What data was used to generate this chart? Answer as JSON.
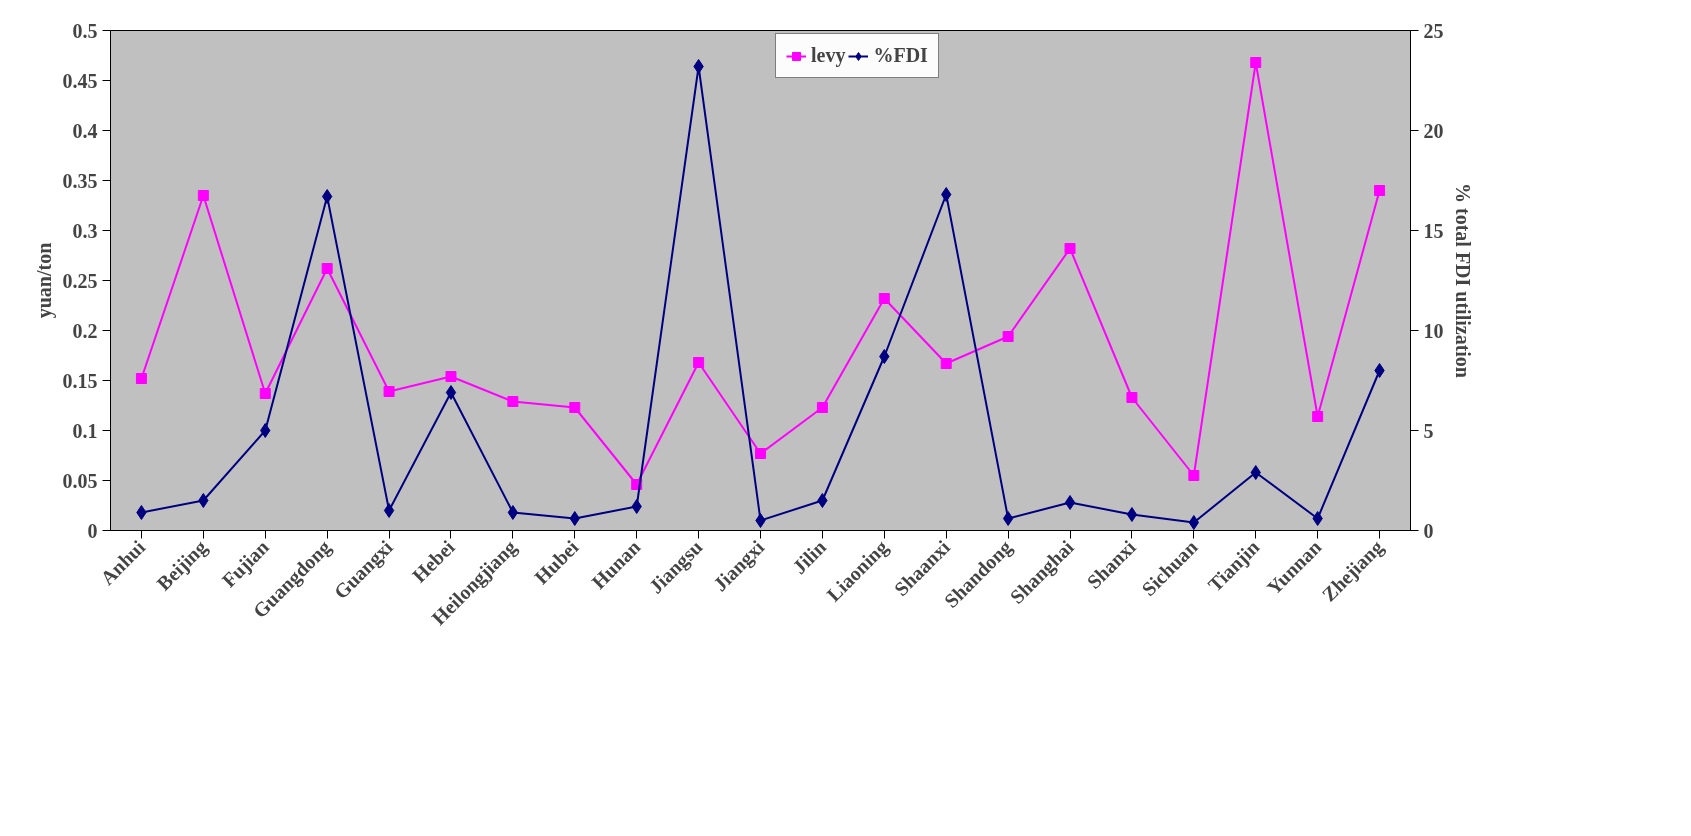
{
  "chart_data": {
    "type": "line",
    "categories": [
      "Anhui",
      "Beijing",
      "Fujian",
      "Guangdong",
      "Guangxi",
      "Hebei",
      "Heilongjiang",
      "Hubei",
      "Hunan",
      "Jiangsu",
      "Jiangxi",
      "Jilin",
      "Liaoning",
      "Shaanxi",
      "Shandong",
      "Shanghai",
      "Shanxi",
      "Sichuan",
      "Tianjin",
      "Yunnan",
      "Zhejiang"
    ],
    "ylabel": "yuan/ton",
    "y2label": "% total FDI utilization",
    "ylim": [
      0,
      0.5
    ],
    "yticks": [
      0,
      0.05,
      0.1,
      0.15,
      0.2,
      0.25,
      0.3,
      0.35,
      0.4,
      0.45,
      0.5
    ],
    "y2lim": [
      0,
      25
    ],
    "y2ticks": [
      0,
      5,
      10,
      15,
      20,
      25
    ],
    "grid": false,
    "legend": "top",
    "series": [
      {
        "name": "levy",
        "color": "#ff00ff",
        "marker": "square",
        "values": [
          0.152,
          0.335,
          0.137,
          0.262,
          0.139,
          0.154,
          0.129,
          0.123,
          0.046,
          0.168,
          0.077,
          0.123,
          0.232,
          0.167,
          0.194,
          0.282,
          0.133,
          0.055,
          0.468,
          0.114,
          0.34
        ]
      },
      {
        "name": "%FDI",
        "color": "#000080",
        "marker": "diamond",
        "axis": "y2",
        "values": [
          0.9,
          1.5,
          5.0,
          16.7,
          1.0,
          6.9,
          0.9,
          0.6,
          1.2,
          23.2,
          0.5,
          1.5,
          8.7,
          16.8,
          0.6,
          1.4,
          0.8,
          0.4,
          2.9,
          0.6,
          8.0
        ]
      }
    ]
  }
}
